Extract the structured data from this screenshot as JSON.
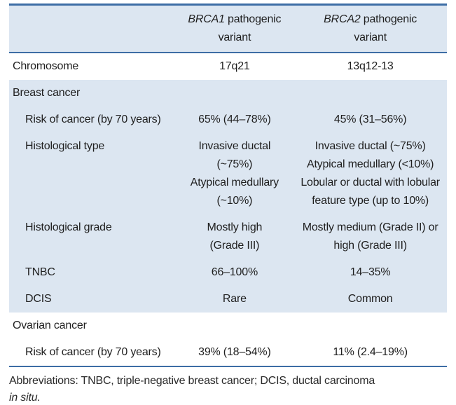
{
  "colors": {
    "accent_rule": "#3d6da5",
    "shaded_band": "#dce6f1",
    "text": "#1f1f1f"
  },
  "table": {
    "header": {
      "col_brca1": {
        "gene": "BRCA1",
        "rest": " pathogenic",
        "line2": "variant"
      },
      "col_brca2": {
        "gene": "BRCA2",
        "rest": " pathogenic",
        "line2": "variant"
      }
    },
    "rows": [
      {
        "label": "Chromosome",
        "brca1": [
          "17q21"
        ],
        "brca2": [
          "13q12-13"
        ]
      },
      {
        "label": "Breast cancer"
      },
      {
        "label": "Risk of cancer (by 70 years)",
        "brca1": [
          "65% (44–78%)"
        ],
        "brca2": [
          "45% (31–56%)"
        ]
      },
      {
        "label": "Histological type",
        "brca1": [
          "Invasive ductal",
          "(~75%)",
          "Atypical medullary",
          "(~10%)"
        ],
        "brca2": [
          "Invasive ductal (~75%)",
          "Atypical medullary (<10%)",
          "Lobular or ductal with lobular",
          "feature type (up to 10%)"
        ]
      },
      {
        "label": "Histological grade",
        "brca1": [
          "Mostly high",
          "(Grade III)"
        ],
        "brca2": [
          "Mostly medium (Grade II) or",
          "high (Grade III)"
        ]
      },
      {
        "label": "TNBC",
        "brca1": [
          "66–100%"
        ],
        "brca2": [
          "14–35%"
        ]
      },
      {
        "label": "DCIS",
        "brca1": [
          "Rare"
        ],
        "brca2": [
          "Common"
        ]
      },
      {
        "label": "Ovarian cancer"
      },
      {
        "label": "Risk of cancer (by 70 years)",
        "brca1": [
          "39% (18–54%)"
        ],
        "brca2": [
          "11% (2.4–19%)"
        ]
      }
    ]
  },
  "footer": {
    "line1": "Abbreviations: TNBC, triple-negative breast cancer; DCIS, ductal carcinoma",
    "line2_italic": "in situ."
  }
}
